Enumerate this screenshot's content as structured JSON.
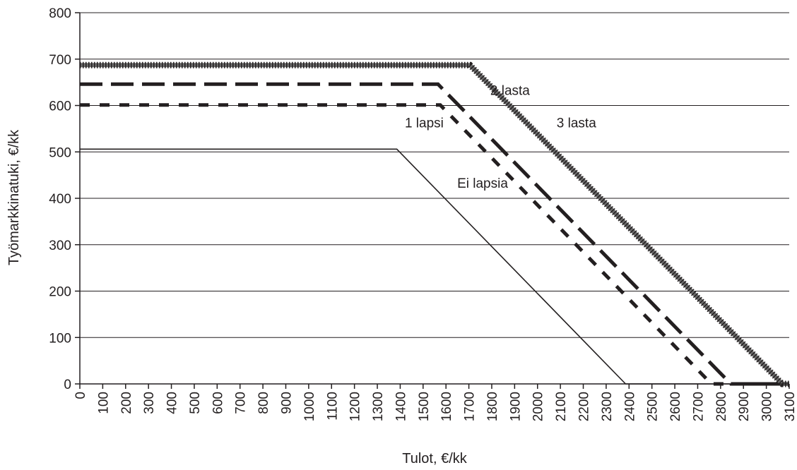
{
  "chart_data": {
    "type": "line",
    "title": "",
    "xlabel": "Tulot, €/kk",
    "ylabel": "Työmarkkinatuki, €/kk",
    "xlim": [
      0,
      3100
    ],
    "ylim": [
      0,
      800
    ],
    "x_ticks": [
      "0",
      "100",
      "200",
      "300",
      "400",
      "500",
      "600",
      "700",
      "800",
      "900",
      "1000",
      "1100",
      "1200",
      "1300",
      "1400",
      "1500",
      "1600",
      "1700",
      "1800",
      "1900",
      "2000",
      "2100",
      "2200",
      "2300",
      "2400",
      "2500",
      "2600",
      "2700",
      "2800",
      "2900",
      "3000",
      "3100"
    ],
    "y_ticks": [
      "0",
      "100",
      "200",
      "300",
      "400",
      "500",
      "600",
      "700",
      "800"
    ],
    "grid": "horizontal",
    "legend": "none",
    "series": [
      {
        "name": "Ei lapsia",
        "style": "solid",
        "points": [
          [
            0,
            506
          ],
          [
            1385,
            506
          ],
          [
            2385,
            0
          ],
          [
            3100,
            0
          ]
        ]
      },
      {
        "name": "1 lapsi",
        "style": "short-dash",
        "points": [
          [
            0,
            601
          ],
          [
            1575,
            601
          ],
          [
            2760,
            0
          ],
          [
            3100,
            0
          ]
        ]
      },
      {
        "name": "2 lasta",
        "style": "long-dash",
        "points": [
          [
            0,
            646
          ],
          [
            1565,
            646
          ],
          [
            2845,
            0
          ],
          [
            3100,
            0
          ]
        ]
      },
      {
        "name": "3 lasta",
        "style": "crosshatch",
        "points": [
          [
            0,
            687
          ],
          [
            1705,
            687
          ],
          [
            3070,
            0
          ],
          [
            3100,
            0
          ]
        ]
      }
    ]
  }
}
